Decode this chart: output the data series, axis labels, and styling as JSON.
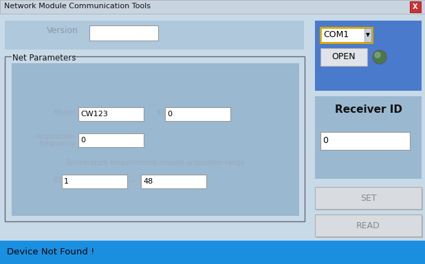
{
  "title": "Network Module Communication Tools",
  "bg_color": "#c8dae8",
  "titlebar_bg": "#c8d8e8",
  "close_btn_color": "#cc3333",
  "version_label": "Version",
  "version_label_color": "#8899aa",
  "version_panel_bg": "#afc8dc",
  "net_params_label": "Net Parameters",
  "model_label": "Model",
  "model_value": "CW123",
  "id_label": "ID",
  "id_value": "0",
  "acq_label1": "Acquisition",
  "acq_label2": "frequency",
  "acq_value": "0",
  "temp_label": "Temperature measurement module acquisition range",
  "temp_id_label": "ID",
  "temp_id_value": "1",
  "temp_tilde": "~",
  "temp_end_value": "48",
  "com_label": "COM1",
  "open_label": "OPEN",
  "receiver_id_label": "Receiver ID",
  "receiver_id_value": "0",
  "set_label": "SET",
  "read_label": "READ",
  "status_label": "Device Not Found !",
  "status_bg": "#1a8fe0",
  "field_bg": "#ffffff",
  "inner_panel_bg": "#9ab8d0",
  "right_panel_bg": "#9ab8d0",
  "com_panel_bg": "#4a7acc",
  "net_group_bg": "#c8dae8",
  "button_bg": "#d8dce0",
  "label_gray": "#9aaabb"
}
